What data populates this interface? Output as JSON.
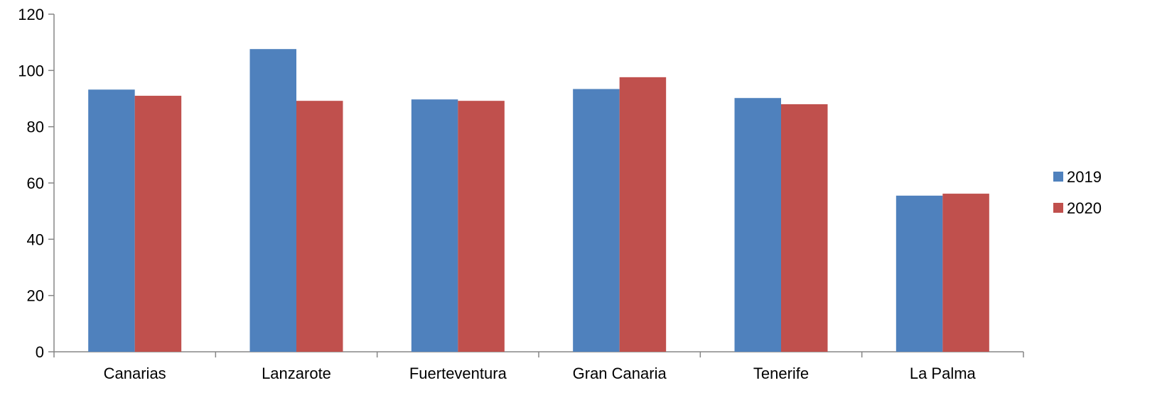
{
  "chart_data": {
    "type": "bar",
    "title": "",
    "xlabel": "",
    "ylabel": "",
    "categories": [
      "Canarias",
      "Lanzarote",
      "Fuerteventura",
      "Gran Canaria",
      "Tenerife",
      "La Palma"
    ],
    "series": [
      {
        "name": "2019",
        "color": "#4F81BD",
        "values": [
          93.2,
          107.6,
          89.7,
          93.4,
          90.2,
          55.5
        ]
      },
      {
        "name": "2020",
        "color": "#C0504D",
        "values": [
          91.0,
          89.2,
          89.2,
          97.6,
          88.0,
          56.2
        ]
      }
    ],
    "ylim": [
      0,
      120
    ],
    "yticks": [
      "0",
      "20",
      "40",
      "60",
      "80",
      "100",
      "120"
    ],
    "grid": false,
    "legend_position": "right"
  }
}
